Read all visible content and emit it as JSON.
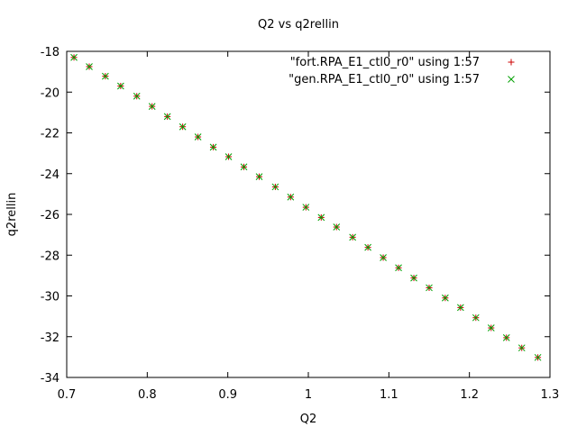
{
  "chart_data": {
    "type": "scatter",
    "title": "Q2 vs q2rellin",
    "xlabel": "Q2",
    "ylabel": "q2rellin",
    "xlim": [
      0.7,
      1.3
    ],
    "ylim": [
      -34,
      -18
    ],
    "xticks": [
      0.7,
      0.8,
      0.9,
      1.0,
      1.1,
      1.2,
      1.3
    ],
    "xtick_labels": [
      "0.7",
      "0.8",
      "0.9",
      "1",
      "1.1",
      "1.2",
      "1.3"
    ],
    "yticks": [
      -18,
      -20,
      -22,
      -24,
      -26,
      -28,
      -30,
      -32,
      -34
    ],
    "ytick_labels": [
      "-18",
      "-20",
      "-22",
      "-24",
      "-26",
      "-28",
      "-30",
      "-32",
      "-34"
    ],
    "grid": false,
    "legend_position": "top-right",
    "series": [
      {
        "name": "\"fort.RPA_E1_ctl0_r0\" using 1:57",
        "marker": "plus",
        "color": "#cc0000",
        "x": [
          0.709,
          0.728,
          0.748,
          0.767,
          0.787,
          0.806,
          0.825,
          0.844,
          0.863,
          0.882,
          0.901,
          0.92,
          0.939,
          0.959,
          0.978,
          0.997,
          1.016,
          1.035,
          1.055,
          1.074,
          1.093,
          1.112,
          1.131,
          1.15,
          1.17,
          1.189,
          1.208,
          1.227,
          1.246,
          1.265,
          1.285
        ],
        "y": [
          -18.3,
          -18.75,
          -19.22,
          -19.7,
          -20.2,
          -20.7,
          -21.2,
          -21.7,
          -22.2,
          -22.7,
          -23.17,
          -23.67,
          -24.15,
          -24.65,
          -25.15,
          -25.65,
          -26.15,
          -26.62,
          -27.12,
          -27.62,
          -28.12,
          -28.62,
          -29.12,
          -29.6,
          -30.1,
          -30.57,
          -31.07,
          -31.57,
          -32.05,
          -32.55,
          -33.02
        ]
      },
      {
        "name": "\"gen.RPA_E1_ctl0_r0\" using 1:57",
        "marker": "cross",
        "color": "#00a000",
        "x": [
          0.709,
          0.728,
          0.748,
          0.767,
          0.787,
          0.806,
          0.825,
          0.844,
          0.863,
          0.882,
          0.901,
          0.92,
          0.939,
          0.959,
          0.978,
          0.997,
          1.016,
          1.035,
          1.055,
          1.074,
          1.093,
          1.112,
          1.131,
          1.15,
          1.17,
          1.189,
          1.208,
          1.227,
          1.246,
          1.265,
          1.285
        ],
        "y": [
          -18.3,
          -18.75,
          -19.22,
          -19.7,
          -20.2,
          -20.7,
          -21.2,
          -21.7,
          -22.2,
          -22.7,
          -23.17,
          -23.67,
          -24.15,
          -24.65,
          -25.15,
          -25.65,
          -26.15,
          -26.62,
          -27.12,
          -27.62,
          -28.12,
          -28.62,
          -29.12,
          -29.6,
          -30.1,
          -30.57,
          -31.07,
          -31.57,
          -32.05,
          -32.55,
          -33.02
        ]
      }
    ]
  }
}
